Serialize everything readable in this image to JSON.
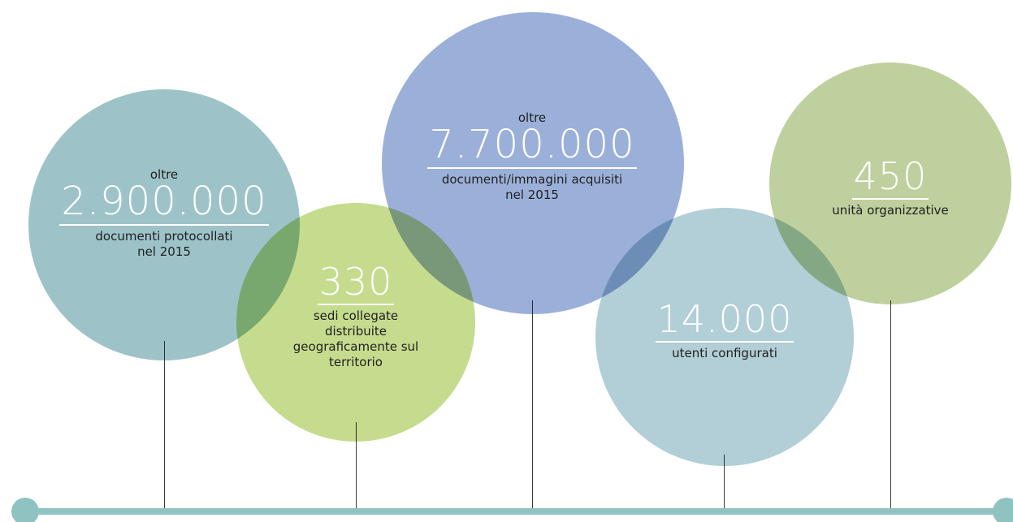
{
  "colors": {
    "teal": "#9dc3c8",
    "green_light": "#c5dc8e",
    "blue": "#9bb0d9",
    "teal_light": "#b2ced6",
    "green": "#bed09d",
    "timeline": "#8ec3c1"
  },
  "stats": [
    {
      "prefix": "oltre",
      "value": "2.900.000",
      "description_lines": [
        "documenti protocollati",
        "nel 2015"
      ]
    },
    {
      "prefix": "",
      "value": "330",
      "description_lines": [
        "sedi collegate",
        "distribuite",
        "geograficamente sul",
        "territorio"
      ]
    },
    {
      "prefix": "oltre",
      "value": "7.700.000",
      "description_lines": [
        "documenti/immagini acquisiti",
        "nel 2015"
      ]
    },
    {
      "prefix": "",
      "value": "14.000",
      "description_lines": [
        "utenti configurati"
      ]
    },
    {
      "prefix": "",
      "value": "450",
      "description_lines": [
        "unità organizzative"
      ]
    }
  ]
}
